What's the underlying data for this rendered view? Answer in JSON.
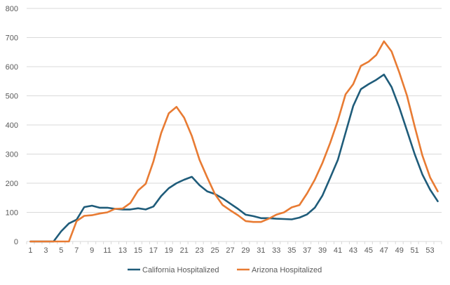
{
  "chart_data": {
    "type": "line",
    "title": "",
    "xlabel": "",
    "ylabel": "",
    "ylim": [
      0,
      800
    ],
    "y_ticks": [
      0,
      100,
      200,
      300,
      400,
      500,
      600,
      700,
      800
    ],
    "x": [
      1,
      2,
      3,
      4,
      5,
      6,
      7,
      8,
      9,
      10,
      11,
      12,
      13,
      14,
      15,
      16,
      17,
      18,
      19,
      20,
      21,
      22,
      23,
      24,
      25,
      26,
      27,
      28,
      29,
      30,
      31,
      32,
      33,
      34,
      35,
      36,
      37,
      38,
      39,
      40,
      41,
      42,
      43,
      44,
      45,
      46,
      47,
      48,
      49,
      50,
      51,
      52,
      53,
      54
    ],
    "x_tick_labels": [
      "1",
      "3",
      "5",
      "7",
      "9",
      "11",
      "13",
      "15",
      "17",
      "19",
      "21",
      "23",
      "25",
      "27",
      "29",
      "31",
      "33",
      "35",
      "37",
      "39",
      "41",
      "43",
      "45",
      "47",
      "49",
      "51",
      "53"
    ],
    "grid": "horizontal",
    "legend_position": "bottom",
    "series": [
      {
        "name": "California Hospitalized",
        "color": "#1f5c7a",
        "values": [
          0,
          0,
          0,
          0,
          35,
          62,
          75,
          118,
          123,
          116,
          116,
          112,
          110,
          110,
          114,
          110,
          120,
          156,
          183,
          200,
          212,
          222,
          193,
          172,
          163,
          148,
          130,
          112,
          92,
          87,
          80,
          80,
          78,
          77,
          76,
          82,
          93,
          116,
          158,
          218,
          280,
          373,
          465,
          523,
          540,
          555,
          573,
          530,
          460,
          380,
          300,
          230,
          178,
          138
        ]
      },
      {
        "name": "Arizona Hospitalized",
        "color": "#e87b33",
        "values": [
          0,
          0,
          0,
          0,
          0,
          0,
          70,
          88,
          90,
          96,
          100,
          112,
          113,
          132,
          175,
          198,
          275,
          372,
          440,
          462,
          425,
          362,
          280,
          220,
          163,
          125,
          107,
          90,
          70,
          67,
          67,
          78,
          92,
          100,
          117,
          125,
          165,
          212,
          270,
          338,
          415,
          505,
          540,
          603,
          617,
          640,
          687,
          652,
          580,
          500,
          395,
          295,
          220,
          172
        ]
      }
    ]
  }
}
